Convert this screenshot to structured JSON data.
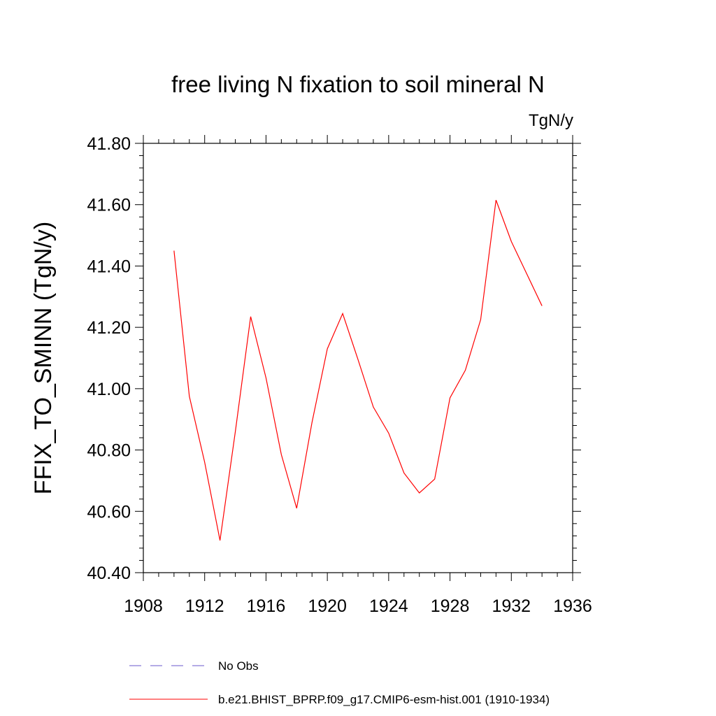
{
  "chart_data": {
    "type": "line",
    "title": "free living N fixation to soil mineral N",
    "units": "TgN/y",
    "xlabel": "",
    "ylabel": "FFIX_TO_SMINN  (TgN/y)",
    "xlim": [
      1908,
      1936
    ],
    "ylim": [
      40.4,
      41.8
    ],
    "x_ticks": [
      1908,
      1912,
      1916,
      1920,
      1924,
      1928,
      1932,
      1936
    ],
    "x_tick_labels": [
      "1908",
      "1912",
      "1916",
      "1920",
      "1924",
      "1928",
      "1932",
      "1936"
    ],
    "y_ticks": [
      40.4,
      40.6,
      40.8,
      41.0,
      41.2,
      41.4,
      41.6,
      41.8
    ],
    "y_tick_labels": [
      "40.40",
      "40.60",
      "40.80",
      "41.00",
      "41.20",
      "41.40",
      "41.60",
      "41.80"
    ],
    "grid": false,
    "legend_position": "bottom",
    "series": [
      {
        "name": "No Obs",
        "style": "dashed",
        "color": "#6a5acd",
        "x": [],
        "values": []
      },
      {
        "name": "b.e21.BHIST_BPRP.f09_g17.CMIP6-esm-hist.001 (1910-1934)",
        "style": "solid",
        "color": "#ff0000",
        "x": [
          1910,
          1911,
          1912,
          1913,
          1914,
          1915,
          1916,
          1917,
          1918,
          1919,
          1920,
          1921,
          1922,
          1923,
          1924,
          1925,
          1926,
          1927,
          1928,
          1929,
          1930,
          1931,
          1932,
          1933,
          1934
        ],
        "values": [
          41.45,
          40.975,
          40.76,
          40.505,
          40.86,
          41.235,
          41.035,
          40.785,
          40.61,
          40.89,
          41.13,
          41.245,
          41.095,
          40.94,
          40.855,
          40.725,
          40.66,
          40.705,
          40.97,
          41.06,
          41.225,
          41.615,
          41.48,
          41.375,
          41.27
        ]
      }
    ]
  }
}
